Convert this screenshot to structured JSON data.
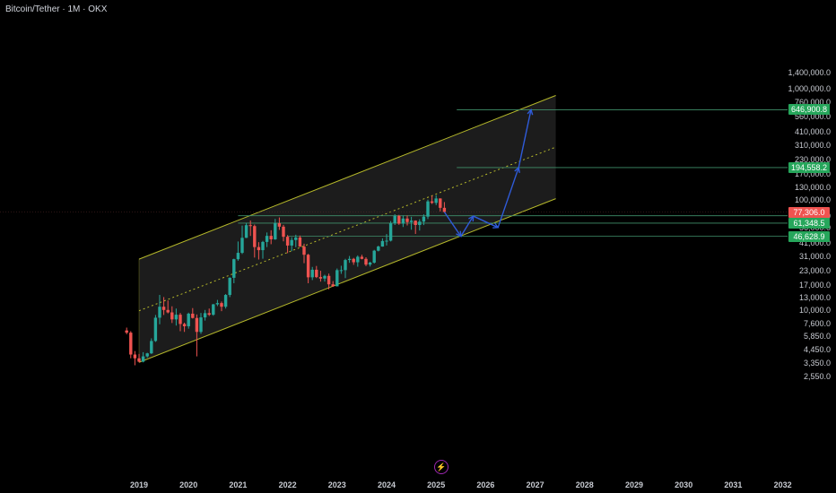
{
  "header": {
    "title": "Bitcoin/Tether · 1M · OKX"
  },
  "colors": {
    "up": "#26a69a",
    "down": "#ef5350",
    "channel": "#b5b82a",
    "channel_fill": "#1c1c1c",
    "projection": "#2f5bd9",
    "level_line": "#3f8f6a",
    "label_green": "#26a65b",
    "label_red": "#ef5350"
  },
  "chart_data": {
    "type": "candlestick",
    "title": "Bitcoin/Tether · 1M · OKX",
    "y_scale": "log",
    "ylim": [
      2200,
      1500000
    ],
    "y_ticks": [
      "1,400,000.0",
      "1,000,000.0",
      "760,000.0",
      "560,000.0",
      "410,000.0",
      "310,000.0",
      "230,000.0",
      "170,000.0",
      "130,000.0",
      "100,000.0",
      "71,000.0",
      "56,000.0",
      "41,000.0",
      "31,000.0",
      "23,000.0",
      "17,000.0",
      "13,000.0",
      "10,000.0",
      "7,600.0",
      "5,850.0",
      "4,450.0",
      "3,350.0",
      "2,550.0"
    ],
    "x_ticks": [
      "2019",
      "2020",
      "2021",
      "2022",
      "2023",
      "2024",
      "2025",
      "2026",
      "2027",
      "2028",
      "2029",
      "2030",
      "2031",
      "2032"
    ],
    "candles": [
      {
        "d": "2018-10",
        "o": 6600,
        "h": 7000,
        "l": 6100,
        "c": 6300
      },
      {
        "d": "2018-11",
        "o": 6300,
        "h": 6500,
        "l": 3700,
        "c": 4000
      },
      {
        "d": "2018-12",
        "o": 4000,
        "h": 4300,
        "l": 3200,
        "c": 3700
      },
      {
        "d": "2019-01",
        "o": 3700,
        "h": 4050,
        "l": 3400,
        "c": 3450
      },
      {
        "d": "2019-02",
        "o": 3450,
        "h": 4200,
        "l": 3400,
        "c": 3850
      },
      {
        "d": "2019-03",
        "o": 3850,
        "h": 4150,
        "l": 3750,
        "c": 4100
      },
      {
        "d": "2019-04",
        "o": 4100,
        "h": 5600,
        "l": 4050,
        "c": 5300
      },
      {
        "d": "2019-05",
        "o": 5300,
        "h": 9100,
        "l": 5200,
        "c": 8600
      },
      {
        "d": "2019-06",
        "o": 8600,
        "h": 13800,
        "l": 7500,
        "c": 10800
      },
      {
        "d": "2019-07",
        "o": 10800,
        "h": 13200,
        "l": 9100,
        "c": 10100
      },
      {
        "d": "2019-08",
        "o": 10100,
        "h": 12300,
        "l": 9400,
        "c": 9600
      },
      {
        "d": "2019-09",
        "o": 9600,
        "h": 10900,
        "l": 7700,
        "c": 8300
      },
      {
        "d": "2019-10",
        "o": 8300,
        "h": 10400,
        "l": 7300,
        "c": 9150
      },
      {
        "d": "2019-11",
        "o": 9150,
        "h": 9500,
        "l": 6500,
        "c": 7550
      },
      {
        "d": "2019-12",
        "o": 7550,
        "h": 7750,
        "l": 6400,
        "c": 7200
      },
      {
        "d": "2020-01",
        "o": 7200,
        "h": 9550,
        "l": 6850,
        "c": 9350
      },
      {
        "d": "2020-02",
        "o": 9350,
        "h": 10500,
        "l": 8450,
        "c": 8550
      },
      {
        "d": "2020-03",
        "o": 8550,
        "h": 9200,
        "l": 3850,
        "c": 6400
      },
      {
        "d": "2020-04",
        "o": 6400,
        "h": 9500,
        "l": 6150,
        "c": 8650
      },
      {
        "d": "2020-05",
        "o": 8650,
        "h": 10100,
        "l": 8100,
        "c": 9450
      },
      {
        "d": "2020-06",
        "o": 9450,
        "h": 10400,
        "l": 8900,
        "c": 9150
      },
      {
        "d": "2020-07",
        "o": 9150,
        "h": 11450,
        "l": 8950,
        "c": 11350
      },
      {
        "d": "2020-08",
        "o": 11350,
        "h": 12450,
        "l": 10950,
        "c": 11650
      },
      {
        "d": "2020-09",
        "o": 11650,
        "h": 12050,
        "l": 9850,
        "c": 10800
      },
      {
        "d": "2020-10",
        "o": 10800,
        "h": 14050,
        "l": 10400,
        "c": 13800
      },
      {
        "d": "2020-11",
        "o": 13800,
        "h": 19900,
        "l": 13200,
        "c": 19700
      },
      {
        "d": "2020-12",
        "o": 19700,
        "h": 29300,
        "l": 17600,
        "c": 29000
      },
      {
        "d": "2021-01",
        "o": 29000,
        "h": 41900,
        "l": 28100,
        "c": 33100
      },
      {
        "d": "2021-02",
        "o": 33100,
        "h": 58300,
        "l": 32300,
        "c": 45200
      },
      {
        "d": "2021-03",
        "o": 45200,
        "h": 61800,
        "l": 45000,
        "c": 58800
      },
      {
        "d": "2021-04",
        "o": 58800,
        "h": 64800,
        "l": 47000,
        "c": 57700
      },
      {
        "d": "2021-05",
        "o": 57700,
        "h": 59500,
        "l": 30000,
        "c": 37300
      },
      {
        "d": "2021-06",
        "o": 37300,
        "h": 41300,
        "l": 28800,
        "c": 35000
      },
      {
        "d": "2021-07",
        "o": 35000,
        "h": 42400,
        "l": 29300,
        "c": 41500
      },
      {
        "d": "2021-08",
        "o": 41500,
        "h": 50500,
        "l": 37300,
        "c": 47100
      },
      {
        "d": "2021-09",
        "o": 47100,
        "h": 52900,
        "l": 39600,
        "c": 43800
      },
      {
        "d": "2021-10",
        "o": 43800,
        "h": 67000,
        "l": 43300,
        "c": 61300
      },
      {
        "d": "2021-11",
        "o": 61300,
        "h": 69000,
        "l": 53300,
        "c": 57000
      },
      {
        "d": "2021-12",
        "o": 57000,
        "h": 59100,
        "l": 42000,
        "c": 46200
      },
      {
        "d": "2022-01",
        "o": 46200,
        "h": 47900,
        "l": 32900,
        "c": 38500
      },
      {
        "d": "2022-02",
        "o": 38500,
        "h": 45800,
        "l": 34300,
        "c": 43200
      },
      {
        "d": "2022-03",
        "o": 43200,
        "h": 48200,
        "l": 37200,
        "c": 45500
      },
      {
        "d": "2022-04",
        "o": 45500,
        "h": 47400,
        "l": 37600,
        "c": 37600
      },
      {
        "d": "2022-05",
        "o": 37600,
        "h": 40000,
        "l": 26700,
        "c": 31800
      },
      {
        "d": "2022-06",
        "o": 31800,
        "h": 32400,
        "l": 17600,
        "c": 19900
      },
      {
        "d": "2022-07",
        "o": 19900,
        "h": 24700,
        "l": 18800,
        "c": 23300
      },
      {
        "d": "2022-08",
        "o": 23300,
        "h": 25200,
        "l": 19600,
        "c": 20000
      },
      {
        "d": "2022-09",
        "o": 20000,
        "h": 22800,
        "l": 18200,
        "c": 19400
      },
      {
        "d": "2022-10",
        "o": 19400,
        "h": 21000,
        "l": 18200,
        "c": 20500
      },
      {
        "d": "2022-11",
        "o": 20500,
        "h": 21500,
        "l": 15500,
        "c": 17200
      },
      {
        "d": "2022-12",
        "o": 17200,
        "h": 18400,
        "l": 16300,
        "c": 16500
      },
      {
        "d": "2023-01",
        "o": 16500,
        "h": 23900,
        "l": 16500,
        "c": 23100
      },
      {
        "d": "2023-02",
        "o": 23100,
        "h": 25300,
        "l": 21400,
        "c": 23100
      },
      {
        "d": "2023-03",
        "o": 23100,
        "h": 29200,
        "l": 19600,
        "c": 28500
      },
      {
        "d": "2023-04",
        "o": 28500,
        "h": 31000,
        "l": 26900,
        "c": 29200
      },
      {
        "d": "2023-05",
        "o": 29200,
        "h": 29800,
        "l": 25800,
        "c": 27200
      },
      {
        "d": "2023-06",
        "o": 27200,
        "h": 31400,
        "l": 24800,
        "c": 30500
      },
      {
        "d": "2023-07",
        "o": 30500,
        "h": 31800,
        "l": 28900,
        "c": 29200
      },
      {
        "d": "2023-08",
        "o": 29200,
        "h": 30200,
        "l": 25100,
        "c": 25900
      },
      {
        "d": "2023-09",
        "o": 25900,
        "h": 27500,
        "l": 24900,
        "c": 27000
      },
      {
        "d": "2023-10",
        "o": 27000,
        "h": 35200,
        "l": 26500,
        "c": 34600
      },
      {
        "d": "2023-11",
        "o": 34600,
        "h": 38400,
        "l": 34100,
        "c": 37700
      },
      {
        "d": "2023-12",
        "o": 37700,
        "h": 44700,
        "l": 37600,
        "c": 42300
      },
      {
        "d": "2024-01",
        "o": 42300,
        "h": 48900,
        "l": 38500,
        "c": 42600
      },
      {
        "d": "2024-02",
        "o": 42600,
        "h": 64000,
        "l": 41900,
        "c": 61200
      },
      {
        "d": "2024-03",
        "o": 61200,
        "h": 73800,
        "l": 59000,
        "c": 71300
      },
      {
        "d": "2024-04",
        "o": 71300,
        "h": 72800,
        "l": 59200,
        "c": 60700
      },
      {
        "d": "2024-05",
        "o": 60700,
        "h": 71900,
        "l": 56600,
        "c": 67500
      },
      {
        "d": "2024-06",
        "o": 67500,
        "h": 71900,
        "l": 58500,
        "c": 62700
      },
      {
        "d": "2024-07",
        "o": 62700,
        "h": 70000,
        "l": 53500,
        "c": 64600
      },
      {
        "d": "2024-08",
        "o": 64600,
        "h": 65000,
        "l": 49000,
        "c": 59000
      },
      {
        "d": "2024-09",
        "o": 59000,
        "h": 66500,
        "l": 52600,
        "c": 63300
      },
      {
        "d": "2024-10",
        "o": 63300,
        "h": 73600,
        "l": 58900,
        "c": 70200
      },
      {
        "d": "2024-11",
        "o": 70200,
        "h": 99800,
        "l": 66800,
        "c": 96400
      },
      {
        "d": "2024-12",
        "o": 96400,
        "h": 108300,
        "l": 91300,
        "c": 93400
      },
      {
        "d": "2025-01",
        "o": 93400,
        "h": 109600,
        "l": 89200,
        "c": 102400
      },
      {
        "d": "2025-02",
        "o": 102400,
        "h": 102700,
        "l": 78200,
        "c": 84300
      },
      {
        "d": "2025-03",
        "o": 84300,
        "h": 95000,
        "l": 76600,
        "c": 77306
      }
    ],
    "channel": {
      "lower": [
        [
          "2019-01",
          3400
        ],
        [
          "2027-06",
          102000
        ]
      ],
      "upper": [
        [
          "2019-01",
          29000
        ],
        [
          "2027-06",
          870000
        ]
      ]
    },
    "projection_path": [
      [
        "2025-03",
        77306
      ],
      [
        "2025-07",
        46628.9
      ],
      [
        "2025-10",
        71000
      ],
      [
        "2026-04",
        56000
      ],
      [
        "2026-09",
        194558.2
      ],
      [
        "2026-12",
        646900.8
      ]
    ],
    "levels": [
      {
        "value": 646900.8,
        "label": "646,900.8",
        "color": "green"
      },
      {
        "value": 194558.2,
        "label": "194,558.2",
        "color": "green"
      },
      {
        "value": 77306.0,
        "label": "77,306.0",
        "color": "red"
      },
      {
        "value": 61348.5,
        "label": "61,348.5",
        "color": "green"
      },
      {
        "value": 46628.9,
        "label": "46,628.9",
        "color": "green"
      }
    ],
    "extra_levels": [
      71500
    ]
  }
}
